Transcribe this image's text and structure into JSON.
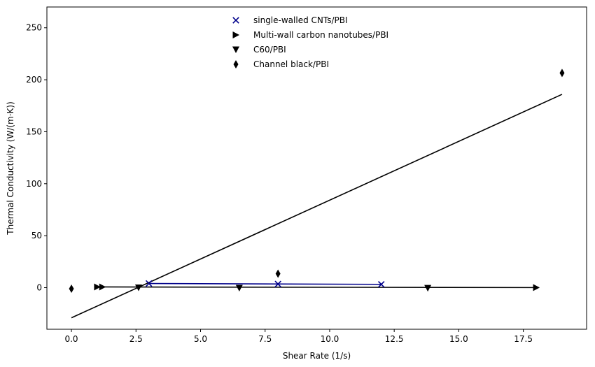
{
  "chart_data": {
    "type": "scatter",
    "xlabel": "Shear Rate (1/s)",
    "ylabel": "Thermal Conductivity (W/(m·K))",
    "xlim": [
      -0.95,
      19.95
    ],
    "ylim": [
      -40,
      270
    ],
    "xticks": [
      0.0,
      2.5,
      5.0,
      7.5,
      10.0,
      12.5,
      15.0,
      17.5
    ],
    "xtick_labels": [
      "0.0",
      "2.5",
      "5.0",
      "7.5",
      "10.0",
      "12.5",
      "15.0",
      "17.5"
    ],
    "yticks": [
      0,
      50,
      100,
      150,
      200,
      250
    ],
    "ytick_labels": [
      "0",
      "50",
      "100",
      "150",
      "200",
      "250"
    ],
    "grid": false,
    "legend_position": "top-center",
    "series": [
      {
        "name": "single-walled CNTs/PBI",
        "marker": "x",
        "color": "#00008b",
        "points": [
          [
            3.0,
            4.0
          ],
          [
            8.0,
            3.5
          ],
          [
            12.0,
            3.2
          ]
        ],
        "fit_line": [
          [
            3.0,
            4.0
          ],
          [
            12.0,
            3.2
          ]
        ]
      },
      {
        "name": "Multi-wall carbon nanotubes/PBI",
        "marker": "triangle-right",
        "color": "#000000",
        "points": [
          [
            1.0,
            0.7
          ],
          [
            1.2,
            0.7
          ],
          [
            18.0,
            0.1
          ]
        ],
        "fit_line": [
          [
            1.0,
            0.7
          ],
          [
            18.0,
            0.1
          ]
        ]
      },
      {
        "name": "C60/PBI",
        "marker": "triangle-down",
        "color": "#000000",
        "points": [
          [
            2.6,
            0.0
          ],
          [
            6.5,
            -0.3
          ],
          [
            13.8,
            -0.4
          ]
        ],
        "fit_line": []
      },
      {
        "name": "Channel black/PBI",
        "marker": "thin-diamond",
        "color": "#000000",
        "points": [
          [
            0.0,
            -1.0
          ],
          [
            8.0,
            13.5
          ],
          [
            19.0,
            206.5
          ]
        ],
        "fit_line": [
          [
            0.0,
            -29.0
          ],
          [
            19.0,
            186.0
          ]
        ]
      }
    ]
  }
}
